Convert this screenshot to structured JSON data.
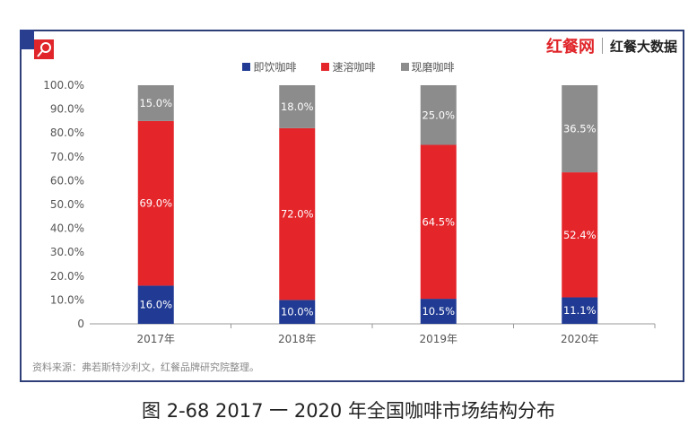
{
  "brand": {
    "logo1": "红餐网",
    "logo2": "红餐大数据"
  },
  "source": "资料来源：弗若斯特沙利文，红餐品牌研究院整理。",
  "caption": "图 2-68    2017 一 2020 年全国咖啡市场结构分布",
  "chart_data": {
    "type": "bar",
    "stacked": true,
    "categories": [
      "2017年",
      "2018年",
      "2019年",
      "2020年"
    ],
    "series": [
      {
        "name": "即饮咖啡",
        "color": "#213b94",
        "values": [
          16.0,
          10.0,
          10.5,
          11.1
        ]
      },
      {
        "name": "速溶咖啡",
        "color": "#e4262b",
        "values": [
          69.0,
          72.0,
          64.5,
          52.4
        ]
      },
      {
        "name": "现磨咖啡",
        "color": "#8c8c8c",
        "values": [
          15.0,
          18.0,
          25.0,
          36.5
        ]
      }
    ],
    "ylim": [
      0,
      100
    ],
    "yticks": [
      "0",
      "10.0%",
      "20.0%",
      "30.0%",
      "40.0%",
      "50.0%",
      "60.0%",
      "70.0%",
      "80.0%",
      "90.0%",
      "100.0%"
    ],
    "grid": false,
    "legend": "top"
  }
}
